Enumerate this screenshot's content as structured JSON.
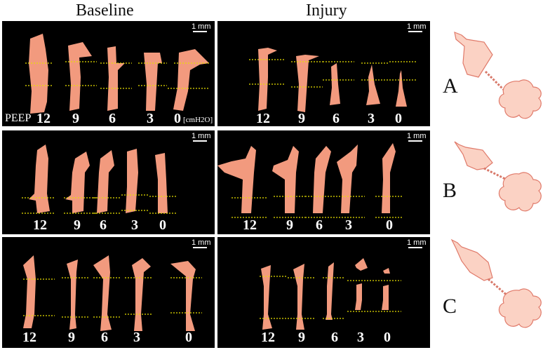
{
  "columns": {
    "left": "Baseline",
    "right": "Injury"
  },
  "scale_label": "1 mm",
  "peep_label": "PEEP",
  "unit_label": "[cmH2O]",
  "peep_values": [
    "12",
    "9",
    "6",
    "3",
    "0"
  ],
  "rows": [
    "A",
    "B",
    "C"
  ],
  "colors": {
    "airway": "#f29a7e",
    "guide_line": "#e8e000",
    "schematic_fill": "#fbd2c4",
    "schematic_stroke": "#e07a6a"
  }
}
